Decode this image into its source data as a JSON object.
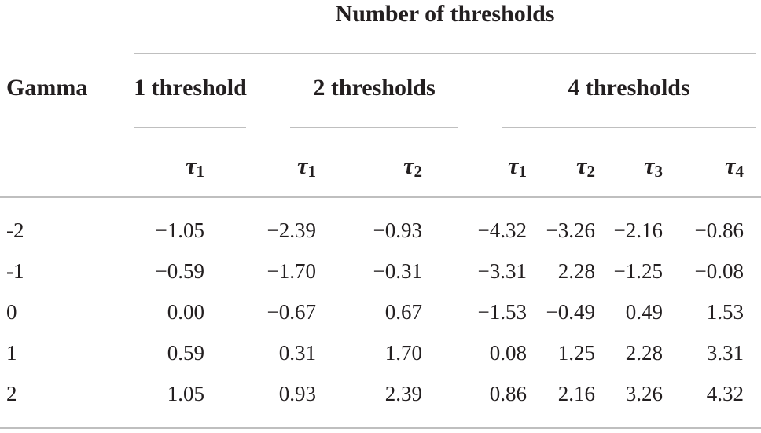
{
  "header": {
    "title": "Number of thresholds",
    "row_label": "Gamma",
    "groups": [
      "1 threshold",
      "2 thresholds",
      "4 thresholds"
    ],
    "columns": [
      {
        "symbol": "τ",
        "index": "1"
      },
      {
        "symbol": "τ",
        "index": "1"
      },
      {
        "symbol": "τ",
        "index": "2"
      },
      {
        "symbol": "τ",
        "index": "1"
      },
      {
        "symbol": "τ",
        "index": "2"
      },
      {
        "symbol": "τ",
        "index": "3"
      },
      {
        "symbol": "τ",
        "index": "4"
      }
    ]
  },
  "table": {
    "rows": [
      [
        "-2",
        "−1.05",
        "−2.39",
        "−0.93",
        "−4.32",
        "−3.26",
        "−2.16",
        "−0.86"
      ],
      [
        "-1",
        "−0.59",
        "−1.70",
        "−0.31",
        "−3.31",
        "2.28",
        "−1.25",
        "−0.08"
      ],
      [
        "0",
        "0.00",
        "−0.67",
        "0.67",
        "−1.53",
        "−0.49",
        "0.49",
        "1.53"
      ],
      [
        "1",
        "0.59",
        "0.31",
        "1.70",
        "0.08",
        "1.25",
        "2.28",
        "3.31"
      ],
      [
        "2",
        "1.05",
        "0.93",
        "2.39",
        "0.86",
        "2.16",
        "3.26",
        "4.32"
      ]
    ]
  }
}
